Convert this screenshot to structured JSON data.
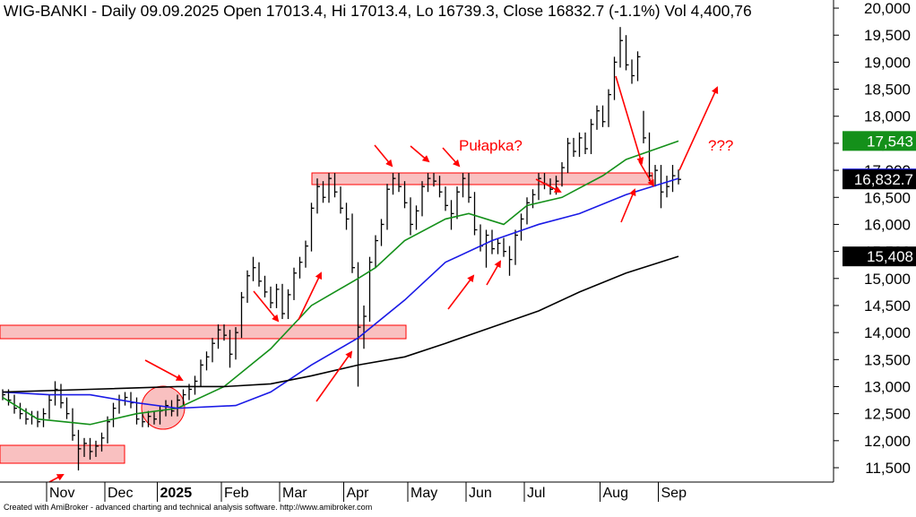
{
  "chart_data": {
    "type": "ohlc",
    "title": "WIG-BANKI - Daily 09.09.2025 Open 17013.4, Hi 17013.4, Lo 16739.3, Close 16832.7 (-1.1%) Vol 4,400,76",
    "footer": "Created with AmiBroker - advanced charting and technical analysis software. http://www.amibroker.com",
    "bar_color": "#000000",
    "categories": [
      null,
      null,
      null,
      null,
      null,
      null,
      null,
      null,
      "Nov",
      null,
      null,
      null,
      null,
      null,
      null,
      null,
      null,
      null,
      "Dec",
      null,
      null,
      null,
      null,
      null,
      null,
      null,
      null,
      "2025",
      null,
      null,
      null,
      null,
      null,
      null,
      null,
      null,
      null,
      null,
      "Feb",
      null,
      null,
      null,
      null,
      null,
      null,
      null,
      null,
      null,
      "Mar",
      null,
      null,
      null,
      null,
      null,
      null,
      null,
      null,
      null,
      null,
      "Apr",
      null,
      null,
      null,
      null,
      null,
      null,
      null,
      null,
      null,
      null,
      "May",
      null,
      null,
      null,
      null,
      null,
      null,
      null,
      null,
      null,
      "Jun",
      null,
      null,
      null,
      null,
      null,
      null,
      null,
      null,
      null,
      "Jul",
      null,
      null,
      null,
      null,
      null,
      null,
      null,
      null,
      null,
      null,
      null,
      null,
      "Aug",
      null,
      null,
      null,
      null,
      null,
      null,
      null,
      null,
      null,
      "Sep",
      null,
      null,
      null
    ],
    "close": [
      12850,
      12750,
      12600,
      12500,
      12400,
      12450,
      12350,
      12500,
      12750,
      12950,
      12700,
      12500,
      12100,
      11850,
      11950,
      11800,
      11900,
      12050,
      12350,
      12600,
      12750,
      12800,
      12700,
      12400,
      12350,
      12450,
      12400,
      12550,
      12650,
      12550,
      12750,
      12850,
      12950,
      13100,
      13400,
      13550,
      13800,
      14050,
      13950,
      13600,
      14000,
      14650,
      15050,
      15200,
      14950,
      14750,
      14550,
      14800,
      14350,
      14700,
      15100,
      15300,
      15600,
      16300,
      16700,
      16500,
      16850,
      16600,
      16300,
      16100,
      15200,
      14100,
      14300,
      15300,
      15700,
      16000,
      16650,
      16850,
      16700,
      16400,
      16000,
      16250,
      16700,
      16850,
      16800,
      16600,
      16350,
      16200,
      16600,
      16850,
      16500,
      15900,
      15600,
      15800,
      15550,
      15650,
      15500,
      15350,
      15800,
      16100,
      16400,
      16550,
      16850,
      16750,
      16650,
      16800,
      17050,
      17500,
      17350,
      17600,
      17400,
      17850,
      18100,
      17900,
      18400,
      19000,
      19400,
      18950,
      18750,
      19100,
      17600,
      16900,
      17000,
      16600,
      16700,
      16900,
      16832.7
    ],
    "high": [
      12950,
      12950,
      12850,
      12700,
      12600,
      12550,
      12550,
      12600,
      12850,
      13100,
      13050,
      12800,
      12600,
      12200,
      12050,
      12050,
      12000,
      12150,
      12450,
      12700,
      12850,
      12900,
      12900,
      12800,
      12500,
      12550,
      12550,
      12650,
      12750,
      12750,
      12850,
      12950,
      13050,
      13200,
      13500,
      13650,
      13900,
      14150,
      14150,
      14050,
      14100,
      14750,
      15150,
      15400,
      15300,
      15050,
      14850,
      14900,
      14900,
      14800,
      15200,
      15400,
      15700,
      16400,
      16850,
      16800,
      16950,
      16950,
      16700,
      16400,
      16200,
      15300,
      14500,
      15400,
      15800,
      16100,
      16750,
      16950,
      16950,
      16800,
      16500,
      16350,
      16800,
      16950,
      16950,
      16900,
      16700,
      16450,
      16700,
      16950,
      16950,
      16600,
      16000,
      15900,
      15900,
      15750,
      15750,
      15600,
      15900,
      16200,
      16500,
      16650,
      16950,
      16950,
      16850,
      16900,
      17150,
      17600,
      17600,
      17700,
      17700,
      17950,
      18200,
      18200,
      18500,
      19100,
      19650,
      19500,
      19050,
      19200,
      18100,
      17700,
      17100,
      17100,
      16900,
      17100,
      17013.4
    ],
    "low": [
      12750,
      12650,
      12500,
      12400,
      12300,
      12300,
      12250,
      12250,
      12400,
      12650,
      12600,
      12400,
      12000,
      11450,
      11700,
      11650,
      11700,
      11800,
      11950,
      12250,
      12500,
      12650,
      12600,
      12300,
      12250,
      12250,
      12300,
      12300,
      12450,
      12450,
      12450,
      12650,
      12750,
      12850,
      13000,
      13300,
      13450,
      13700,
      13850,
      13350,
      13500,
      13900,
      14550,
      14950,
      14850,
      14650,
      14450,
      14450,
      14250,
      14250,
      14600,
      15000,
      15200,
      15500,
      16200,
      16400,
      16400,
      16500,
      16200,
      15900,
      15100,
      13000,
      13700,
      14200,
      15200,
      15600,
      15900,
      16550,
      16600,
      16300,
      15800,
      15900,
      16150,
      16600,
      16700,
      16500,
      16250,
      15900,
      16100,
      16500,
      16400,
      15800,
      15500,
      15200,
      15450,
      15450,
      15400,
      15050,
      15250,
      15700,
      16000,
      16300,
      16450,
      16650,
      16550,
      16550,
      16700,
      16950,
      17250,
      17250,
      17300,
      17300,
      17750,
      17800,
      17800,
      18300,
      18900,
      18850,
      18600,
      18650,
      17500,
      16800,
      16700,
      16300,
      16500,
      16600,
      16739.3
    ],
    "lines": [
      {
        "color": "#14901a",
        "x": [
          0,
          6,
          15,
          23,
          30,
          38,
          46,
          53,
          61,
          64,
          69,
          76,
          80,
          86,
          90,
          96,
          103,
          107,
          116
        ],
        "values": [
          12800,
          12400,
          12300,
          12500,
          12600,
          13000,
          13700,
          14500,
          15000,
          15200,
          15700,
          16100,
          16200,
          16000,
          16350,
          16500,
          16900,
          17200,
          17543
        ],
        "last": {
          "value": 17543,
          "label": "17,543"
        }
      },
      {
        "color": "#1a1ae6",
        "x": [
          0,
          8,
          15,
          23,
          30,
          40,
          46,
          53,
          61,
          69,
          76,
          84,
          92,
          99,
          107,
          116
        ],
        "values": [
          12900,
          12850,
          12850,
          12700,
          12600,
          12650,
          12900,
          13400,
          13900,
          14600,
          15300,
          15700,
          16000,
          16200,
          16550,
          16850.2
        ],
        "last": {
          "value": 16850.2,
          "label": "16,850.2"
        }
      },
      {
        "color": "#000000",
        "x": [
          0,
          15,
          30,
          38,
          46,
          53,
          61,
          69,
          76,
          84,
          92,
          99,
          107,
          116
        ],
        "values": [
          12900,
          12950,
          13000,
          13000,
          13050,
          13200,
          13400,
          13550,
          13800,
          14100,
          14400,
          14750,
          15100,
          15408
        ],
        "last": {
          "value": 15408,
          "label": "15,408"
        }
      }
    ],
    "close_label": {
      "value": 16832.7,
      "label": "16,832.7"
    },
    "annotations": [
      {
        "text": "Pułapka?"
      },
      {
        "text": "???"
      }
    ],
    "ylim": [
      11235,
      20150
    ],
    "yticks": [
      {
        "value": 11500,
        "label": "11,500"
      },
      {
        "value": 12000,
        "label": "12,000"
      },
      {
        "value": 12500,
        "label": "12,500"
      },
      {
        "value": 13000,
        "label": "13,000"
      },
      {
        "value": 13500,
        "label": "13,500"
      },
      {
        "value": 14000,
        "label": "14,000"
      },
      {
        "value": 14500,
        "label": "14,500"
      },
      {
        "value": 15000,
        "label": "15,000"
      },
      {
        "value": 15500,
        "label": "15,500"
      },
      {
        "value": 16000,
        "label": "16,000"
      },
      {
        "value": 16500,
        "label": "16,500"
      },
      {
        "value": 17000,
        "label": "17,000"
      },
      {
        "value": 17500,
        "label": "17,500"
      },
      {
        "value": 18000,
        "label": "18,000"
      },
      {
        "value": 18500,
        "label": "18,500"
      },
      {
        "value": 19000,
        "label": "19,000"
      },
      {
        "value": 19500,
        "label": "19,500"
      },
      {
        "value": 20000,
        "label": "20,000"
      }
    ]
  }
}
